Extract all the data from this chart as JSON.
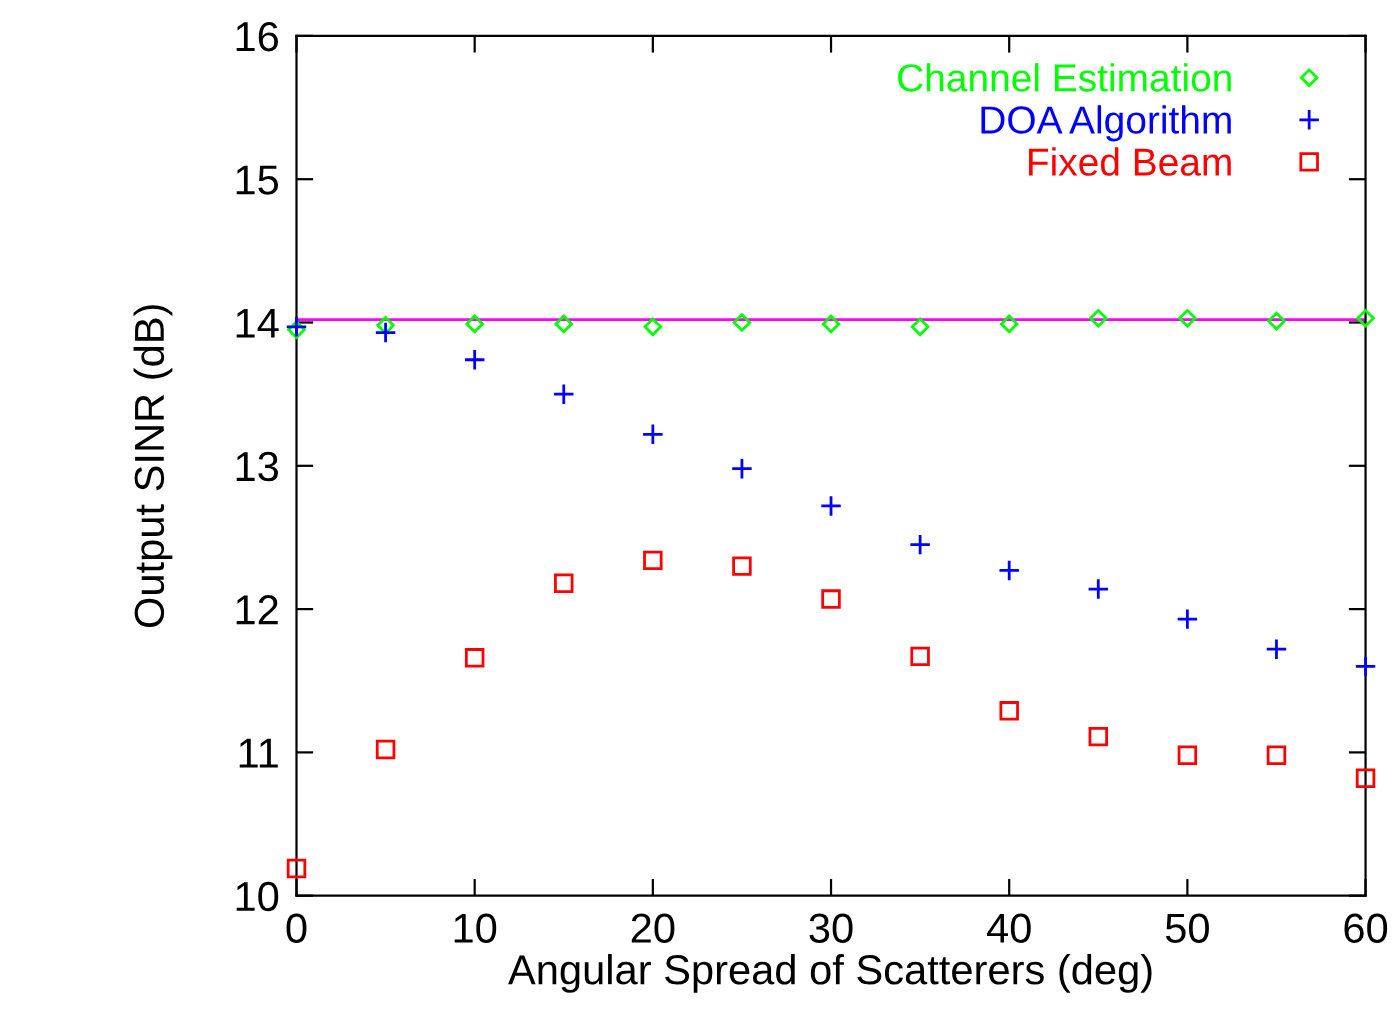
{
  "chart_data": {
    "type": "scatter",
    "xlabel": "Angular Spread of Scatterers (deg)",
    "ylabel": "Output SINR (dB)",
    "x": [
      0,
      5,
      10,
      15,
      20,
      25,
      30,
      35,
      40,
      45,
      50,
      55,
      60
    ],
    "series": [
      {
        "name": "Channel Estimation",
        "color": "#00ff00",
        "marker": "diamond",
        "values": [
          13.95,
          13.98,
          13.99,
          13.99,
          13.97,
          14.0,
          13.99,
          13.97,
          13.99,
          14.03,
          14.03,
          14.01,
          14.03
        ]
      },
      {
        "name": "DOA Algorithm",
        "color": "#0000ff",
        "marker": "cross",
        "values": [
          13.97,
          13.93,
          13.74,
          13.5,
          13.22,
          12.98,
          12.72,
          12.45,
          12.27,
          12.14,
          11.93,
          11.72,
          11.6
        ]
      },
      {
        "name": "Fixed Beam",
        "color": "#ff0000",
        "marker": "square",
        "values": [
          10.19,
          11.02,
          11.66,
          12.18,
          12.34,
          12.3,
          12.07,
          11.67,
          11.29,
          11.11,
          10.98,
          10.98,
          10.82
        ]
      }
    ],
    "ref_lines": [
      {
        "axis": "y",
        "value": 14.02,
        "color": "#ff00ff"
      }
    ],
    "xlim": [
      0,
      60
    ],
    "xticks": [
      0,
      10,
      20,
      30,
      40,
      50,
      60
    ],
    "ylim": [
      10,
      16
    ],
    "yticks": [
      10,
      11,
      12,
      13,
      14,
      15,
      16
    ],
    "grid": false,
    "legend": "top right"
  }
}
